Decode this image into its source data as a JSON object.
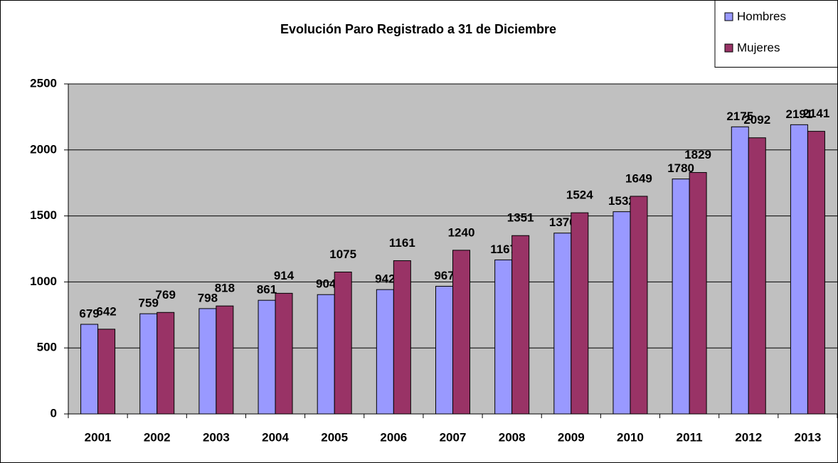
{
  "chart_data": {
    "type": "bar",
    "title": "Evolución Paro Registrado a 31 de Diciembre",
    "categories": [
      "2001",
      "2002",
      "2003",
      "2004",
      "2005",
      "2006",
      "2007",
      "2008",
      "2009",
      "2010",
      "2011",
      "2012",
      "2013"
    ],
    "series": [
      {
        "name": "Hombres",
        "color": "#9999ff",
        "values": [
          679,
          759,
          798,
          861,
          904,
          942,
          967,
          1167,
          1370,
          1532,
          1780,
          2175,
          2191
        ]
      },
      {
        "name": "Mujeres",
        "color": "#993366",
        "values": [
          642,
          769,
          818,
          914,
          1075,
          1161,
          1240,
          1351,
          1524,
          1649,
          1829,
          2092,
          2141
        ]
      }
    ],
    "ylim": [
      0,
      2500
    ],
    "yticks": [
      0,
      500,
      1000,
      1500,
      2000,
      2500
    ],
    "grid": true,
    "legend": "top-right"
  }
}
